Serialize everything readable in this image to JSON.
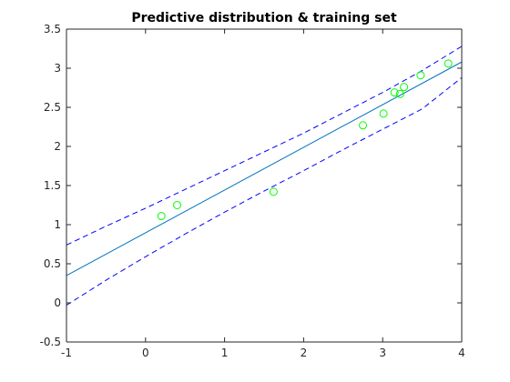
{
  "chart_data": {
    "type": "scatter",
    "title": "Predictive distribution & training set",
    "xlabel": "",
    "ylabel": "",
    "xlim": [
      -1,
      4
    ],
    "ylim": [
      -0.5,
      3.5
    ],
    "xticks": [
      -1,
      0,
      1,
      2,
      3,
      4
    ],
    "yticks": [
      -0.5,
      0,
      0.5,
      1,
      1.5,
      2,
      2.5,
      3,
      3.5
    ],
    "grid": false,
    "series": [
      {
        "kind": "line",
        "style": "solid",
        "color": "#0072bd",
        "x": [
          -1,
          4
        ],
        "y": [
          0.35,
          3.08
        ]
      },
      {
        "kind": "line",
        "style": "dashed",
        "color": "#0000ff",
        "x": [
          -1,
          -0.5,
          0,
          0.5,
          1,
          1.5,
          2,
          2.5,
          3,
          3.5,
          4
        ],
        "y": [
          0.74,
          0.98,
          1.21,
          1.45,
          1.69,
          1.93,
          2.17,
          2.43,
          2.69,
          2.97,
          3.28
        ]
      },
      {
        "kind": "line",
        "style": "dashed",
        "color": "#0000ff",
        "x": [
          -1,
          -0.5,
          0,
          0.5,
          1,
          1.5,
          2,
          2.5,
          3,
          3.5,
          4
        ],
        "y": [
          -0.03,
          0.29,
          0.59,
          0.88,
          1.16,
          1.43,
          1.69,
          1.96,
          2.22,
          2.48,
          2.88
        ]
      },
      {
        "kind": "markers",
        "marker": "circle-open",
        "color": "#00ff00",
        "x": [
          0.2,
          0.4,
          1.62,
          2.75,
          3.01,
          3.15,
          3.22,
          3.27,
          3.48,
          3.83
        ],
        "y": [
          1.11,
          1.25,
          1.42,
          2.27,
          2.42,
          2.69,
          2.67,
          2.76,
          2.91,
          3.06
        ]
      }
    ]
  }
}
